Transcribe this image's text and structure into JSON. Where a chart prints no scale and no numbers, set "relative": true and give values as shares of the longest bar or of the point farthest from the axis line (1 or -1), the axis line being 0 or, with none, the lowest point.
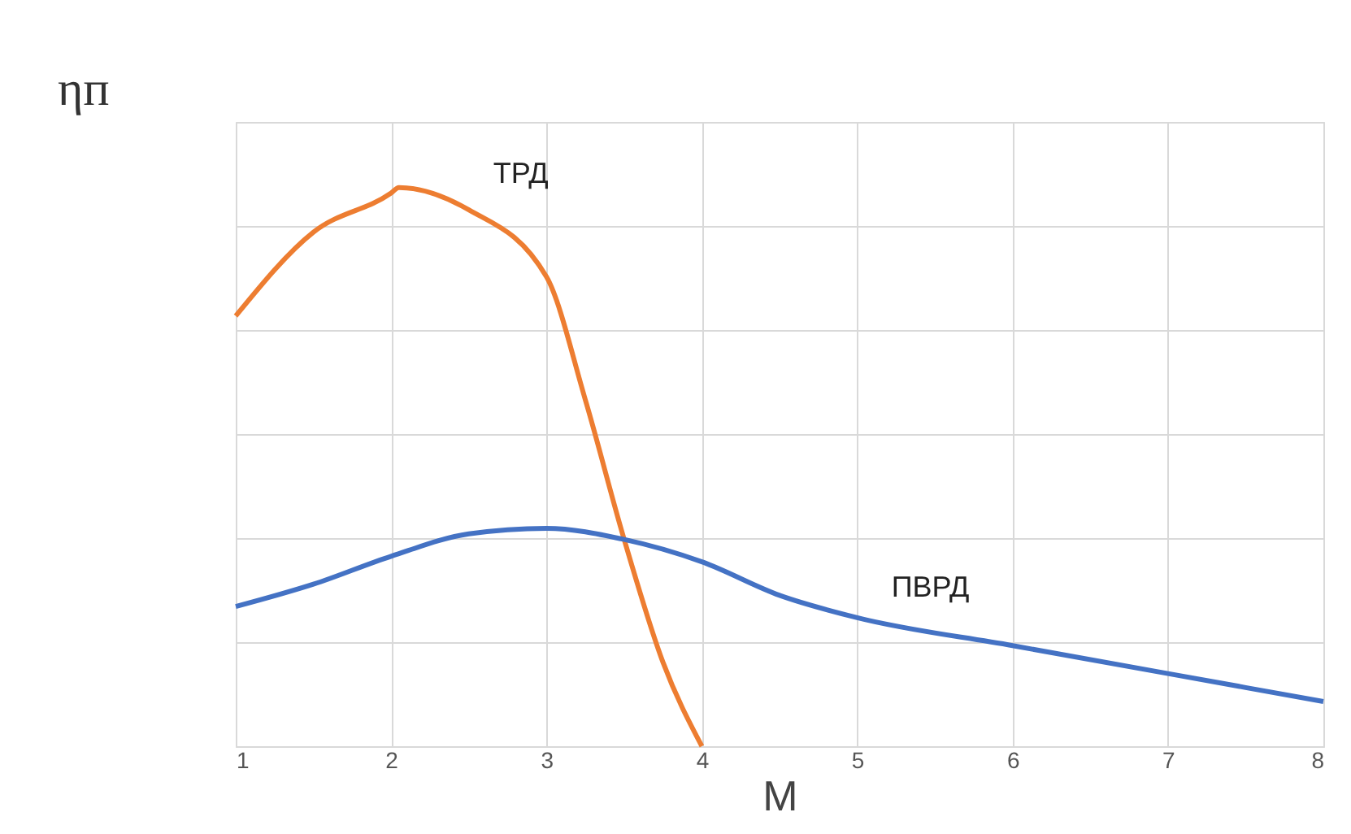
{
  "chart_data": {
    "type": "line",
    "relative": true,
    "xlabel": "M",
    "ylabel": "ηп",
    "xlim": [
      1,
      8
    ],
    "xticks": [
      1,
      2,
      3,
      4,
      5,
      6,
      7,
      8
    ],
    "grid": true,
    "legend": false,
    "line_style": "solid",
    "marker": "none",
    "series": [
      {
        "name": "ТРД",
        "color": "#ed7d31",
        "x": [
          1,
          1.5,
          2,
          2.05,
          2.5,
          3,
          3.25,
          3.5,
          3.75,
          4
        ],
        "values": [
          0.77,
          0.92,
          0.99,
          1.0,
          0.96,
          0.84,
          0.62,
          0.37,
          0.15,
          0
        ]
      },
      {
        "name": "ПВРД",
        "color": "#4472c4",
        "x": [
          1,
          1.5,
          2,
          2.5,
          3,
          3.5,
          4,
          4.5,
          5,
          6,
          7,
          8
        ],
        "values": [
          0.25,
          0.29,
          0.34,
          0.38,
          0.39,
          0.37,
          0.33,
          0.27,
          0.23,
          0.18,
          0.13,
          0.08
        ]
      }
    ]
  }
}
